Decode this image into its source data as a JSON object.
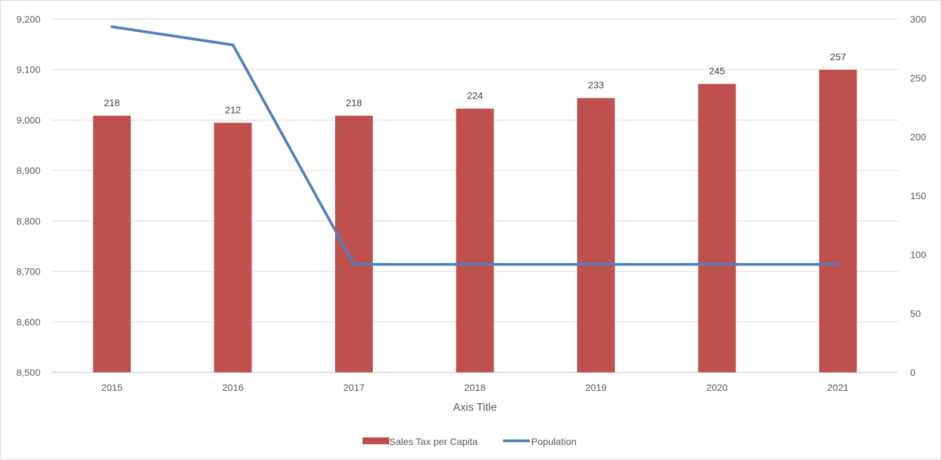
{
  "chart_data": {
    "type": "bar",
    "categories": [
      "2015",
      "2016",
      "2017",
      "2018",
      "2019",
      "2020",
      "2021"
    ],
    "xlabel": "Axis Title",
    "ylim": [
      8500,
      9200
    ],
    "y2lim": [
      0,
      300
    ],
    "y_ticks": [
      "8,500",
      "8,600",
      "8,700",
      "8,800",
      "8,900",
      "9,000",
      "9,100",
      "9,200"
    ],
    "y2_ticks": [
      "0",
      "50",
      "100",
      "150",
      "200",
      "250",
      "300"
    ],
    "grid": true,
    "legend_position": "bottom",
    "series": [
      {
        "name": "Sales Tax per Capita",
        "type": "bar",
        "axis": "secondary",
        "color": "#c0504d",
        "values": [
          218,
          212,
          218,
          224,
          233,
          245,
          257
        ],
        "data_labels": [
          "218",
          "212",
          "218",
          "224",
          "233",
          "245",
          "257"
        ]
      },
      {
        "name": "Population",
        "type": "line",
        "axis": "primary",
        "color": "#4f81bd",
        "values": [
          9185,
          9149,
          8714,
          8714,
          8714,
          8714,
          8714
        ]
      }
    ]
  }
}
